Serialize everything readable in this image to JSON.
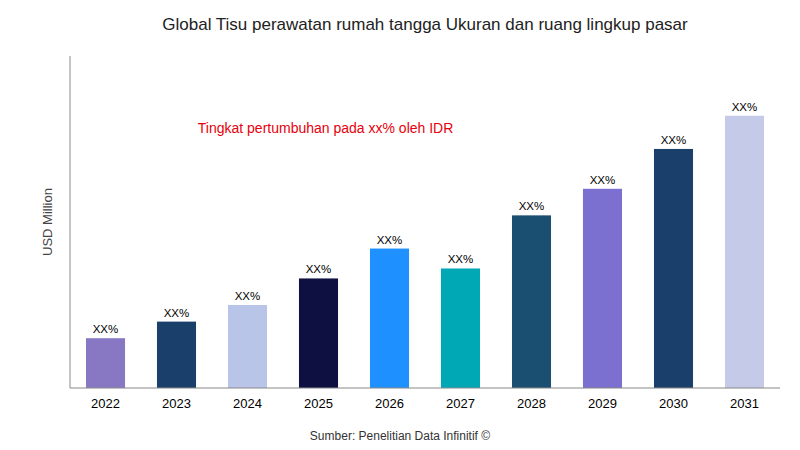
{
  "chart_data": {
    "type": "bar",
    "title": "Global Tisu perawatan rumah tangga Ukuran dan ruang lingkup pasar",
    "ylabel": "USD Million",
    "annotations": [
      {
        "text": "Tingkat pertumbuhan pada xx% oleh IDR",
        "color": "#E8000D"
      }
    ],
    "source": "Sumber: Penelitian Data Infinitif ©",
    "categories": [
      "2022",
      "2023",
      "2024",
      "2025",
      "2026",
      "2027",
      "2028",
      "2029",
      "2030",
      "2031"
    ],
    "values": [
      15,
      20,
      25,
      33,
      42,
      36,
      52,
      60,
      72,
      82
    ],
    "value_labels": [
      "XX%",
      "XX%",
      "XX%",
      "XX%",
      "XX%",
      "XX%",
      "XX%",
      "XX%",
      "XX%",
      "XX%"
    ],
    "data_labels": true,
    "colors": [
      "#8878C3",
      "#1B3F6B",
      "#B8C4E8",
      "#0D1040",
      "#1E90FF",
      "#00A8B5",
      "#1B4F72",
      "#7B6FD0",
      "#1B3F6B",
      "#C5CAE9"
    ],
    "ylim": [
      0,
      100
    ],
    "tick_labels": "x",
    "grid": false
  }
}
